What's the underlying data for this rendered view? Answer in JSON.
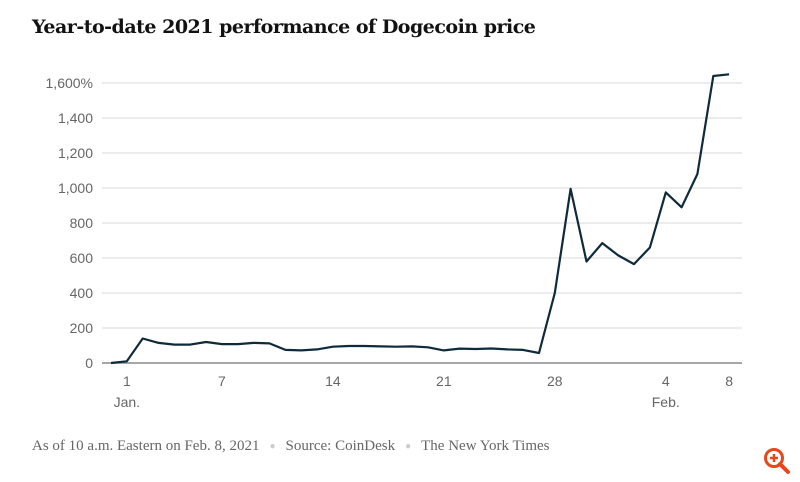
{
  "chart_data": {
    "type": "line",
    "title": "Year-to-date 2021 performance of Dogecoin price",
    "xlabel": "",
    "ylabel": "",
    "ylim": [
      0,
      1600
    ],
    "y_ticks": [
      {
        "value": 0,
        "label": "0"
      },
      {
        "value": 200,
        "label": "200"
      },
      {
        "value": 400,
        "label": "400"
      },
      {
        "value": 600,
        "label": "600"
      },
      {
        "value": 800,
        "label": "800"
      },
      {
        "value": 1000,
        "label": "1,000"
      },
      {
        "value": 1200,
        "label": "1,200"
      },
      {
        "value": 1400,
        "label": "1,400"
      },
      {
        "value": 1600,
        "label": "1,600%"
      }
    ],
    "x_ticks": [
      {
        "date": "2021-01-01",
        "label": "1",
        "sublabel": "Jan."
      },
      {
        "date": "2021-01-07",
        "label": "7"
      },
      {
        "date": "2021-01-14",
        "label": "14"
      },
      {
        "date": "2021-01-21",
        "label": "21"
      },
      {
        "date": "2021-01-28",
        "label": "28"
      },
      {
        "date": "2021-02-04",
        "label": "4",
        "sublabel": "Feb."
      },
      {
        "date": "2021-02-08",
        "label": "8"
      }
    ],
    "grid": true,
    "line_color": "#0f2a3a",
    "x": [
      "2020-12-31",
      "2021-01-01",
      "2021-01-02",
      "2021-01-03",
      "2021-01-04",
      "2021-01-05",
      "2021-01-06",
      "2021-01-07",
      "2021-01-08",
      "2021-01-09",
      "2021-01-10",
      "2021-01-11",
      "2021-01-12",
      "2021-01-13",
      "2021-01-14",
      "2021-01-15",
      "2021-01-16",
      "2021-01-17",
      "2021-01-18",
      "2021-01-19",
      "2021-01-20",
      "2021-01-21",
      "2021-01-22",
      "2021-01-23",
      "2021-01-24",
      "2021-01-25",
      "2021-01-26",
      "2021-01-27",
      "2021-01-28",
      "2021-01-29",
      "2021-01-30",
      "2021-01-31",
      "2021-02-01",
      "2021-02-02",
      "2021-02-03",
      "2021-02-04",
      "2021-02-05",
      "2021-02-06",
      "2021-02-07",
      "2021-02-08"
    ],
    "values": [
      0,
      10,
      140,
      115,
      105,
      105,
      120,
      108,
      108,
      115,
      112,
      75,
      72,
      78,
      93,
      97,
      97,
      95,
      93,
      95,
      90,
      72,
      82,
      80,
      83,
      78,
      75,
      57,
      400,
      995,
      580,
      685,
      615,
      565,
      660,
      975,
      890,
      1080,
      1640,
      1650
    ]
  },
  "footer": {
    "note": "As of 10 a.m. Eastern on Feb. 8, 2021",
    "source": "Source: CoinDesk",
    "credit": "The New York Times"
  },
  "icons": {
    "zoom": "zoom-in-icon"
  },
  "colors": {
    "accent": "#e8471c"
  }
}
